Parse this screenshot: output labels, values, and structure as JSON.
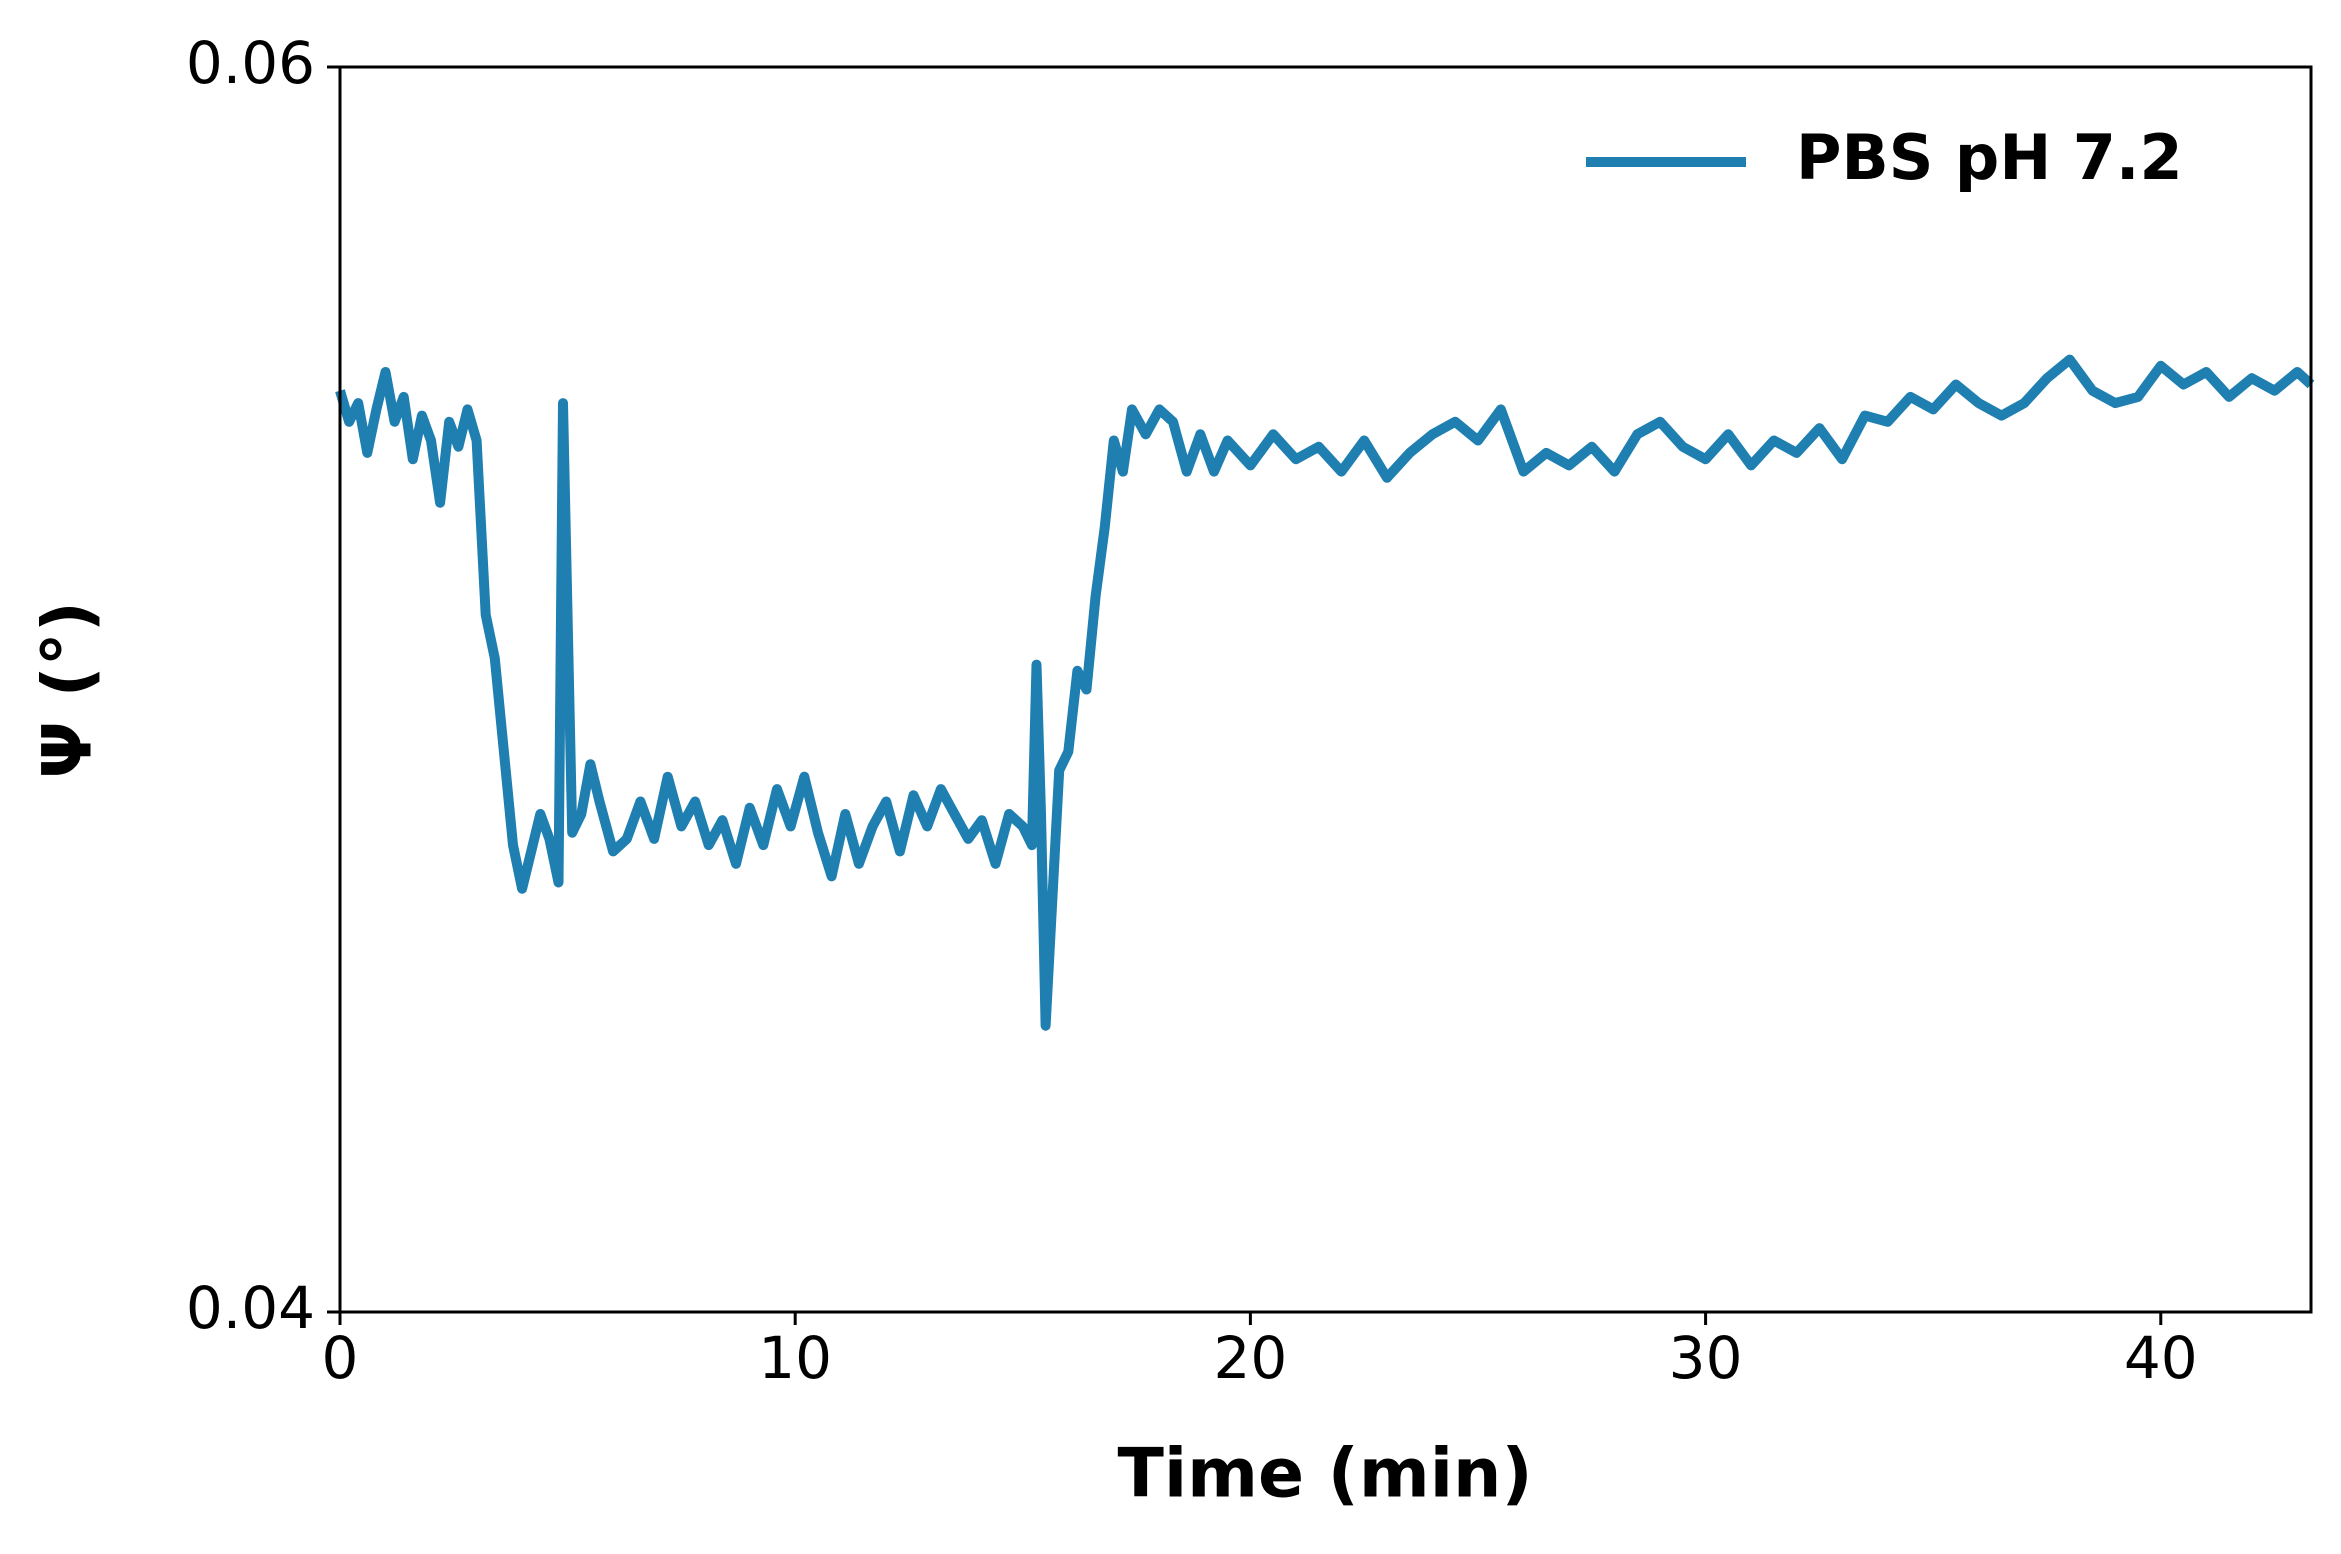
{
  "chart_data": {
    "type": "line",
    "xlabel": "Time (min)",
    "ylabel": "Ψ (°)",
    "x": [
      0.0,
      0.2,
      0.4,
      0.6,
      0.8,
      1.0,
      1.2,
      1.4,
      1.6,
      1.8,
      2.0,
      2.2,
      2.4,
      2.6,
      2.8,
      3.0,
      3.2,
      3.4,
      3.6,
      3.8,
      4.0,
      4.2,
      4.4,
      4.6,
      4.8,
      4.9,
      5.1,
      5.3,
      5.5,
      5.7,
      6.0,
      6.3,
      6.6,
      6.9,
      7.2,
      7.5,
      7.8,
      8.1,
      8.4,
      8.7,
      9.0,
      9.3,
      9.6,
      9.9,
      10.2,
      10.5,
      10.8,
      11.1,
      11.4,
      11.7,
      12.0,
      12.3,
      12.6,
      12.9,
      13.2,
      13.5,
      13.8,
      14.1,
      14.4,
      14.7,
      15.0,
      15.2,
      15.3,
      15.4,
      15.5,
      15.8,
      16.0,
      16.2,
      16.4,
      16.6,
      16.8,
      17.0,
      17.2,
      17.4,
      17.7,
      18.0,
      18.3,
      18.6,
      18.9,
      19.2,
      19.5,
      20.0,
      20.5,
      21.0,
      21.5,
      22.0,
      22.5,
      23.0,
      23.5,
      24.0,
      24.5,
      25.0,
      25.5,
      26.0,
      26.5,
      27.0,
      27.5,
      28.0,
      28.5,
      29.0,
      29.5,
      30.0,
      30.5,
      31.0,
      31.5,
      32.0,
      32.5,
      33.0,
      33.5,
      34.0,
      34.5,
      35.0,
      35.5,
      36.0,
      36.5,
      37.0,
      37.5,
      38.0,
      38.5,
      39.0,
      39.5,
      40.0,
      40.5,
      41.0,
      41.5,
      42.0,
      42.5,
      43.0,
      43.3
    ],
    "series": [
      {
        "name": "PBS pH 7.2",
        "color": "#1f7fb0",
        "values": [
          0.0548,
          0.0543,
          0.0546,
          0.0538,
          0.0545,
          0.0551,
          0.0543,
          0.0547,
          0.0537,
          0.0544,
          0.054,
          0.053,
          0.0543,
          0.0539,
          0.0545,
          0.054,
          0.0512,
          0.0505,
          0.049,
          0.0475,
          0.0468,
          0.0474,
          0.048,
          0.0476,
          0.0469,
          0.0546,
          0.0477,
          0.048,
          0.0488,
          0.0482,
          0.0474,
          0.0476,
          0.0482,
          0.0476,
          0.0486,
          0.0478,
          0.0482,
          0.0475,
          0.0479,
          0.0472,
          0.0481,
          0.0475,
          0.0484,
          0.0478,
          0.0486,
          0.0477,
          0.047,
          0.048,
          0.0472,
          0.0478,
          0.0482,
          0.0474,
          0.0483,
          0.0478,
          0.0484,
          0.048,
          0.0476,
          0.0479,
          0.0472,
          0.048,
          0.0478,
          0.0475,
          0.0504,
          0.048,
          0.0446,
          0.0487,
          0.049,
          0.0503,
          0.05,
          0.0515,
          0.0526,
          0.054,
          0.0535,
          0.0545,
          0.0541,
          0.0545,
          0.0543,
          0.0535,
          0.0541,
          0.0535,
          0.054,
          0.0536,
          0.0541,
          0.0537,
          0.0539,
          0.0535,
          0.054,
          0.0534,
          0.0538,
          0.0541,
          0.0543,
          0.054,
          0.0545,
          0.0535,
          0.0538,
          0.0536,
          0.0539,
          0.0535,
          0.0541,
          0.0543,
          0.0539,
          0.0537,
          0.0541,
          0.0536,
          0.054,
          0.0538,
          0.0542,
          0.0537,
          0.0544,
          0.0543,
          0.0547,
          0.0545,
          0.0549,
          0.0546,
          0.0544,
          0.0546,
          0.055,
          0.0553,
          0.0548,
          0.0546,
          0.0547,
          0.0552,
          0.0549,
          0.0551,
          0.0547,
          0.055,
          0.0548,
          0.0551,
          0.0549
        ]
      }
    ],
    "xlim": [
      0,
      43.3
    ],
    "ylim": [
      0.04,
      0.06
    ],
    "xticks": [
      0,
      10,
      20,
      30,
      40
    ],
    "yticks": [
      0.04,
      0.06
    ],
    "legend": "upper right"
  }
}
